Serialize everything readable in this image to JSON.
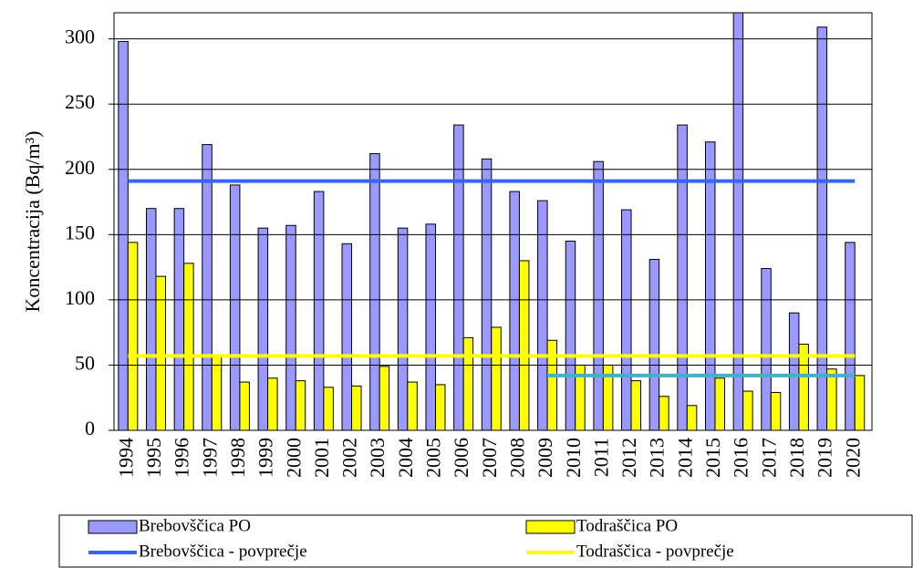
{
  "chart_data": {
    "type": "bar",
    "y_label": "Koncentracija (Bq/m³)",
    "categories": [
      "1994",
      "1995",
      "1996",
      "1997",
      "1998",
      "1999",
      "2000",
      "2001",
      "2002",
      "2003",
      "2004",
      "2005",
      "2006",
      "2007",
      "2008",
      "2009",
      "2010",
      "2011",
      "2012",
      "2013",
      "2014",
      "2015",
      "2016",
      "2017",
      "2018",
      "2019",
      "2020"
    ],
    "series": [
      {
        "name": "Brebovščica PO",
        "kind": "bar",
        "color": "#9999ff",
        "values": [
          298,
          170,
          170,
          219,
          188,
          155,
          157,
          183,
          143,
          212,
          155,
          158,
          234,
          208,
          183,
          176,
          145,
          206,
          169,
          131,
          234,
          221,
          330,
          124,
          90,
          309,
          144
        ]
      },
      {
        "name": "Todraščica PO",
        "kind": "bar",
        "color": "#ffff00",
        "values": [
          144,
          118,
          128,
          58,
          37,
          40,
          38,
          33,
          34,
          49,
          37,
          35,
          71,
          79,
          130,
          69,
          50,
          50,
          38,
          26,
          19,
          40,
          30,
          29,
          66,
          47,
          42
        ]
      },
      {
        "name": "Brebovščica - povprečje",
        "kind": "line",
        "color": "#3366ff",
        "values": [
          191,
          191,
          191,
          191,
          191,
          191,
          191,
          191,
          191,
          191,
          191,
          191,
          191,
          191,
          191,
          191,
          191,
          191,
          191,
          191,
          191,
          191,
          191,
          191,
          191,
          191,
          191
        ]
      },
      {
        "name": "Todraščica - povprečje",
        "kind": "line",
        "color": "#ffff00",
        "values": [
          57,
          57,
          57,
          57,
          57,
          57,
          57,
          57,
          57,
          57,
          57,
          57,
          57,
          57,
          57,
          57,
          57,
          57,
          57,
          57,
          57,
          57,
          57,
          57,
          57,
          57,
          57
        ]
      },
      {
        "kind": "line",
        "color": "#4bacc6",
        "values": [
          null,
          null,
          null,
          null,
          null,
          null,
          null,
          null,
          null,
          null,
          null,
          null,
          null,
          null,
          null,
          42,
          42,
          42,
          42,
          42,
          42,
          42,
          42,
          42,
          42,
          42,
          42
        ]
      }
    ],
    "ylim": [
      0,
      320
    ],
    "yticks": [
      0,
      50,
      100,
      150,
      200,
      250,
      300
    ],
    "grid": true
  }
}
